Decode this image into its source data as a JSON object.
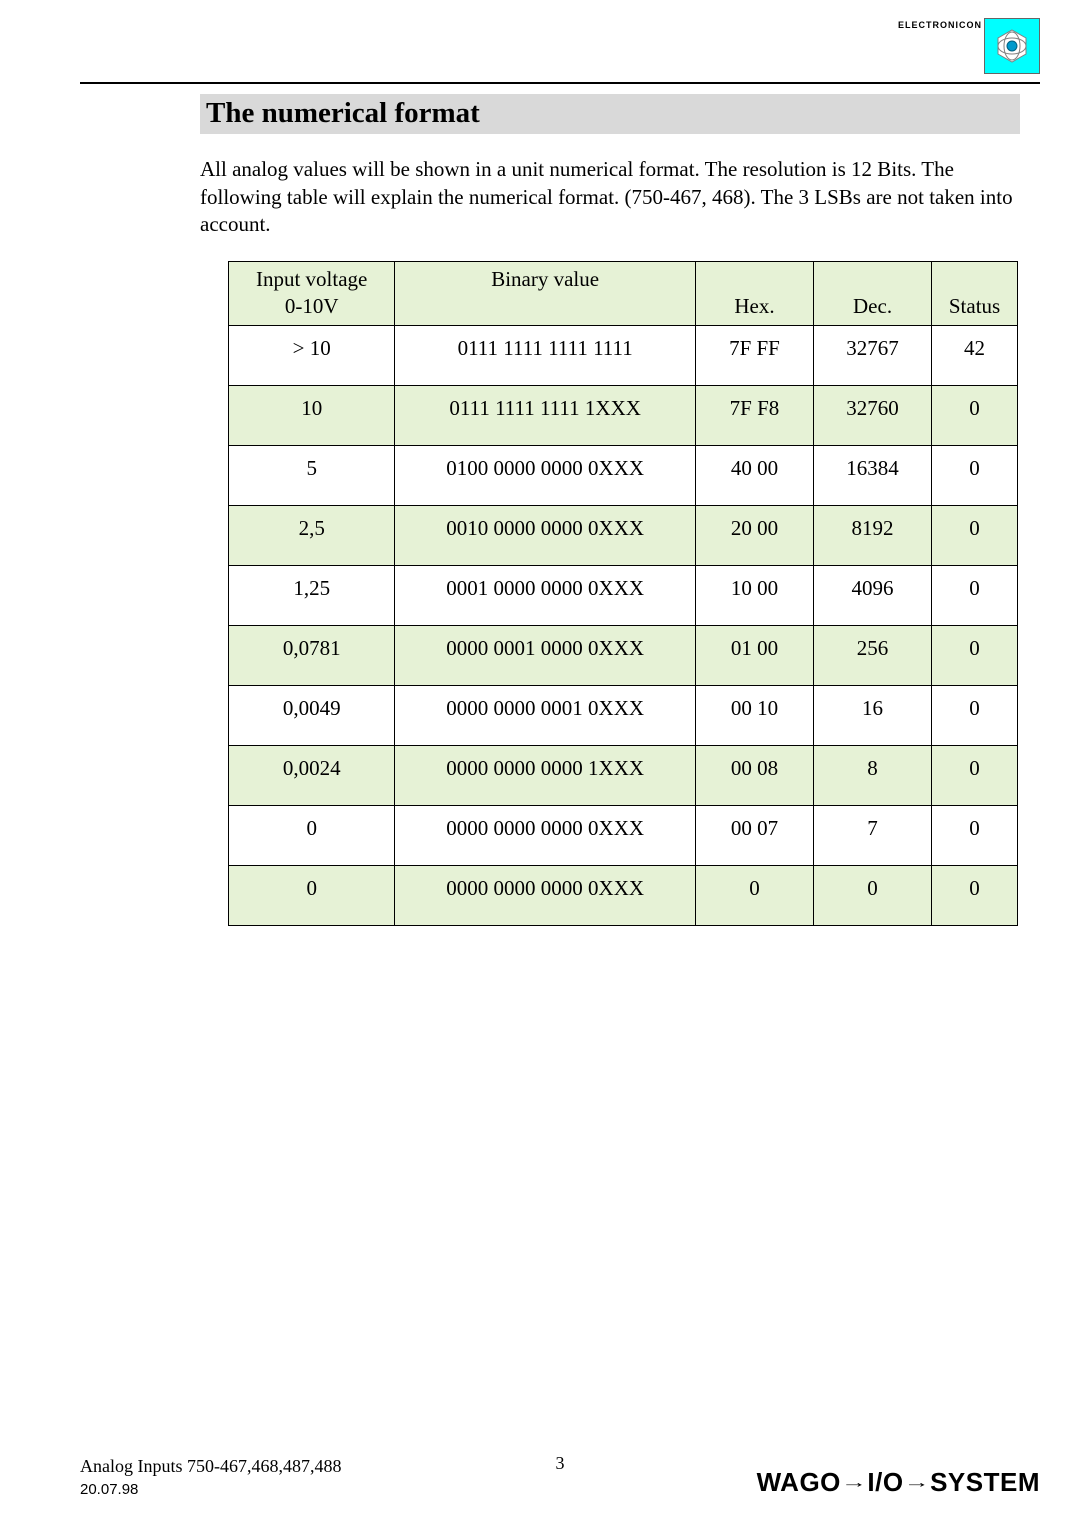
{
  "logo": {
    "label": "ELECTRONICON"
  },
  "title": "The numerical format",
  "intro": "All analog values will be shown in a unit numerical format. The resolution is 12 Bits. The following table will explain the numerical format. (750-467, 468). The 3 LSBs are not taken into account.",
  "table": {
    "headers": {
      "voltage_line1": "Input voltage",
      "voltage_line2": "0-10V",
      "binary": "Binary value",
      "hex": "Hex.",
      "dec": "Dec.",
      "status": "Status"
    },
    "col_widths": {
      "voltage": 155,
      "binary": 280,
      "hex": 110,
      "dec": 110,
      "status": 80
    },
    "header_bg": "#e6f2d6",
    "shaded_bg": "#e6f2d6",
    "border_color": "#000000",
    "rows": [
      {
        "voltage": "> 10",
        "binary": "0111 1111 1111 1111",
        "hex": "7F FF",
        "dec": "32767",
        "status": "42",
        "shaded": false
      },
      {
        "voltage": "10",
        "binary": "0111 1111 1111 1XXX",
        "hex": "7F F8",
        "dec": "32760",
        "status": "0",
        "shaded": true
      },
      {
        "voltage": "5",
        "binary": "0100 0000 0000 0XXX",
        "hex": "40 00",
        "dec": "16384",
        "status": "0",
        "shaded": false
      },
      {
        "voltage": "2,5",
        "binary": "0010 0000 0000 0XXX",
        "hex": "20 00",
        "dec": "8192",
        "status": "0",
        "shaded": true
      },
      {
        "voltage": "1,25",
        "binary": "0001 0000 0000 0XXX",
        "hex": "10 00",
        "dec": "4096",
        "status": "0",
        "shaded": false
      },
      {
        "voltage": "0,0781",
        "binary": "0000 0001 0000 0XXX",
        "hex": "01 00",
        "dec": "256",
        "status": "0",
        "shaded": true
      },
      {
        "voltage": "0,0049",
        "binary": "0000 0000 0001 0XXX",
        "hex": "00 10",
        "dec": "16",
        "status": "0",
        "shaded": false
      },
      {
        "voltage": "0,0024",
        "binary": "0000 0000 0000 1XXX",
        "hex": "00 08",
        "dec": "8",
        "status": "0",
        "shaded": true
      },
      {
        "voltage": "0",
        "binary": "0000 0000 0000 0XXX",
        "hex": "00 07",
        "dec": "7",
        "status": "0",
        "shaded": false
      },
      {
        "voltage": "0",
        "binary": "0000 0000 0000 0XXX",
        "hex": "0",
        "dec": "0",
        "status": "0",
        "shaded": true
      }
    ]
  },
  "footer": {
    "doc_title": "Analog Inputs 750-467,468,487,488",
    "page": "3",
    "date": "20.07.98",
    "brand_parts": {
      "w": "WAGO",
      "sep": "→",
      "io1": "I/O",
      "sys": "SYSTEM"
    }
  }
}
